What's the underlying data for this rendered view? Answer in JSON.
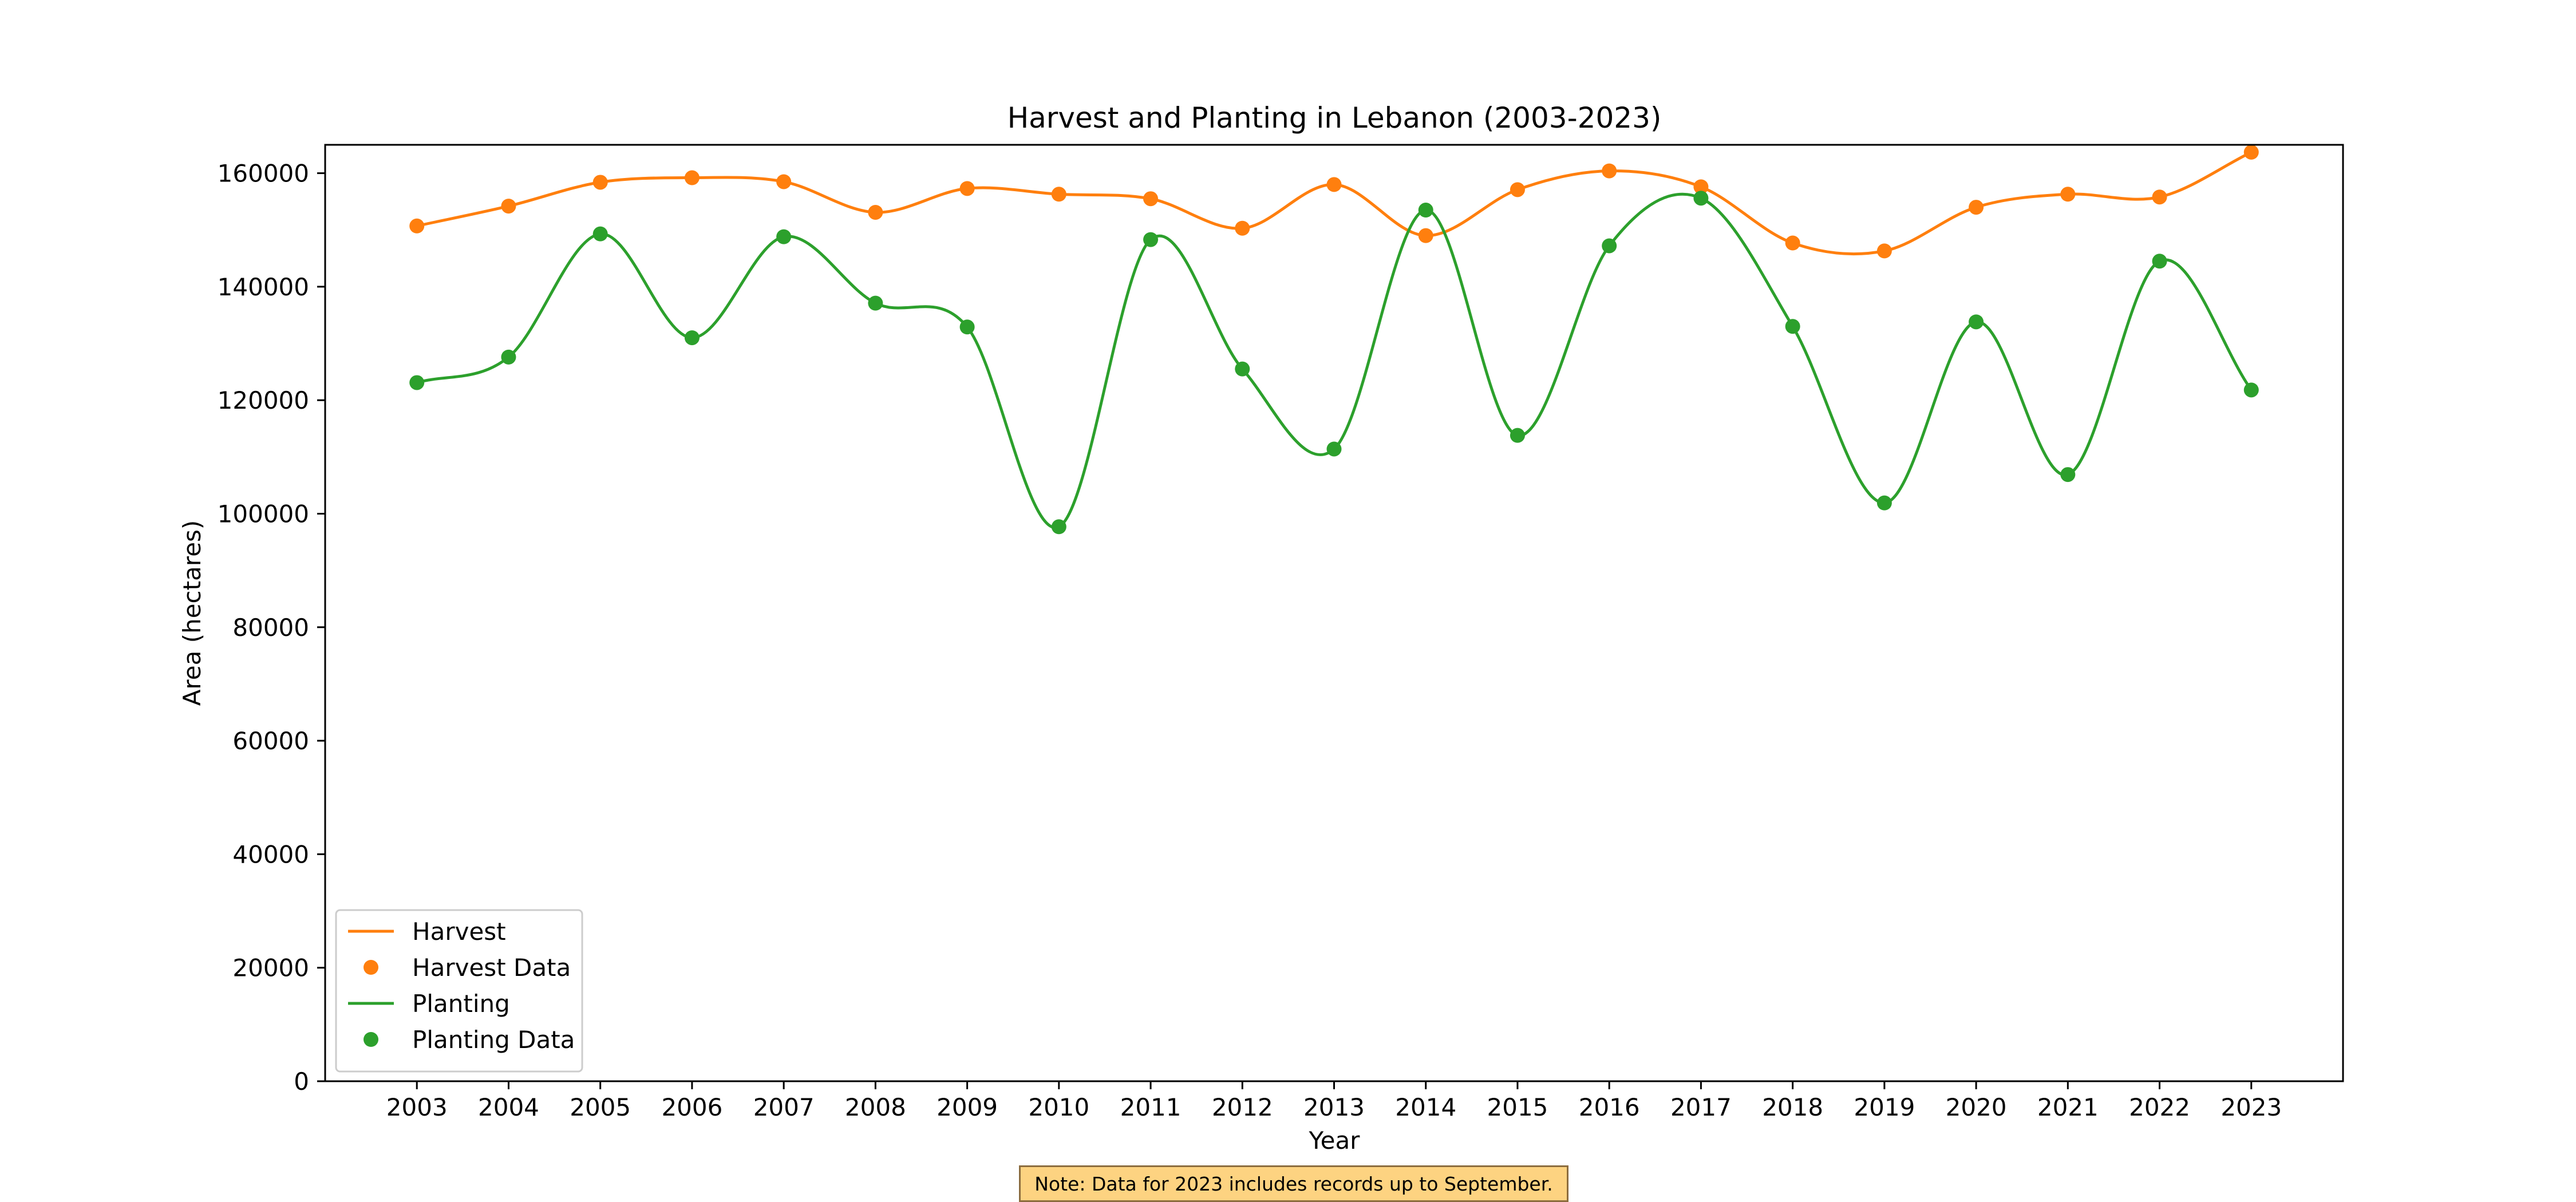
{
  "colors": {
    "harvest": "#ff7f0e",
    "planting": "#2ca02c",
    "note_background": "#fdd381",
    "note_border": "#8c6d3f"
  },
  "note": {
    "text": "Note: Data for 2023 includes records up to September."
  },
  "chart_data": {
    "type": "line",
    "title": "Harvest and Planting in Lebanon (2003-2023)",
    "xlabel": "Year",
    "ylabel": "Area (hectares)",
    "x": [
      2003,
      2004,
      2005,
      2006,
      2007,
      2008,
      2009,
      2010,
      2011,
      2012,
      2013,
      2014,
      2015,
      2016,
      2017,
      2018,
      2019,
      2020,
      2021,
      2022,
      2023
    ],
    "xlim": [
      2002,
      2024
    ],
    "ylim": [
      0,
      165000
    ],
    "yticks": [
      0,
      20000,
      40000,
      60000,
      80000,
      100000,
      120000,
      140000,
      160000
    ],
    "grid": false,
    "legend_position": "lower-left",
    "legend": [
      "Harvest",
      "Harvest Data",
      "Planting",
      "Planting Data"
    ],
    "series": [
      {
        "name": "Harvest",
        "data_name": "Harvest Data",
        "color": "#ff7f0e",
        "values": [
          150700,
          154200,
          158400,
          159200,
          158500,
          153100,
          157300,
          156300,
          155500,
          150300,
          158000,
          149000,
          157100,
          160400,
          157600,
          147700,
          146300,
          154000,
          156300,
          155800,
          163700
        ]
      },
      {
        "name": "Planting",
        "data_name": "Planting Data",
        "color": "#2ca02c",
        "values": [
          123100,
          127600,
          149300,
          131000,
          148800,
          137100,
          132900,
          97700,
          148300,
          125500,
          111400,
          153500,
          113800,
          147200,
          155600,
          133000,
          101900,
          133800,
          106900,
          144500,
          121800
        ]
      }
    ]
  }
}
